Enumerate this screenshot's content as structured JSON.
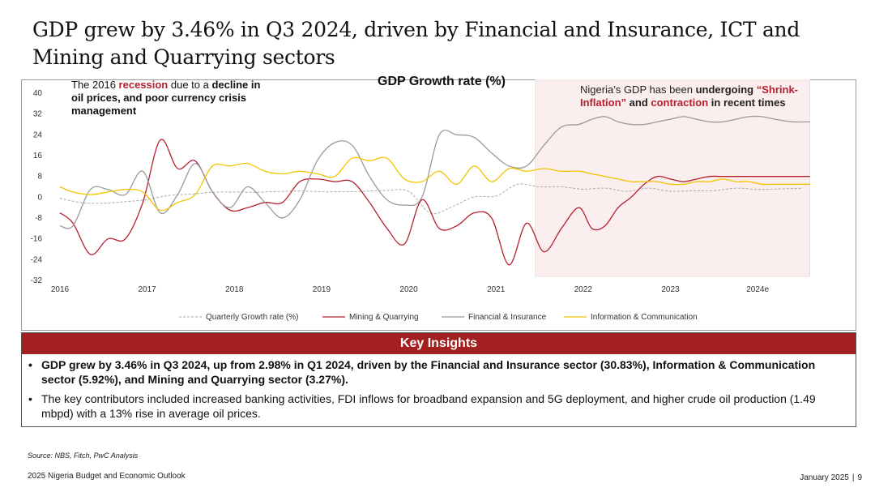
{
  "title": "GDP grew by 3.46% in Q3 2024, driven by Financial and Insurance,  ICT and Mining and Quarrying sectors",
  "notes": {
    "left": {
      "pre": "The 2016 ",
      "highlight": "recession",
      "post": " due to a",
      "bold": "decline in oil prices, and poor currency crisis management"
    },
    "right": {
      "pre": "Nigeria’s GDP has been ",
      "bold1": "undergoing ",
      "highlight1": "“Shrink-Inflation”",
      "mid": " and ",
      "highlight2": "contraction",
      "bold2": " in recent times"
    }
  },
  "colors": {
    "quarterly": "#aaaaaa",
    "mining": "#b5202e",
    "finance": "#9a9a9a",
    "ict": "#f2c400",
    "shade": "#fbeeee",
    "header": "#a32020"
  },
  "chart_data": {
    "type": "line",
    "title": "GDP Growth rate (%)",
    "xlabel": "",
    "ylabel": "",
    "ylim": [
      -32,
      40
    ],
    "yticks": [
      -32,
      -24,
      -16,
      -8,
      0,
      8,
      16,
      24,
      32,
      40
    ],
    "xlim": [
      2016,
      2024.9
    ],
    "xticks": [
      {
        "value": 2016,
        "label": "2016"
      },
      {
        "value": 2017,
        "label": "2017"
      },
      {
        "value": 2018,
        "label": "2018"
      },
      {
        "value": 2019,
        "label": "2019"
      },
      {
        "value": 2020,
        "label": "2020"
      },
      {
        "value": 2021,
        "label": "2021"
      },
      {
        "value": 2022,
        "label": "2022"
      },
      {
        "value": 2023,
        "label": "2023"
      },
      {
        "value": 2024,
        "label": "2024e"
      }
    ],
    "shaded_region": {
      "x_start": 2021.45,
      "x_end": 2024.6
    },
    "series": [
      {
        "name": "Quarterly Growth rate (%)",
        "style": "dashed",
        "x": [
          2016.0,
          2016.25,
          2016.5,
          2016.75,
          2017.0,
          2017.25,
          2017.5,
          2017.75,
          2018.0,
          2018.25,
          2018.5,
          2018.75,
          2019.0,
          2019.25,
          2019.5,
          2019.75,
          2020.0,
          2020.25,
          2020.5,
          2020.75,
          2021.0,
          2021.25,
          2021.5,
          2021.75,
          2022.0,
          2022.25,
          2022.5,
          2022.75,
          2023.0,
          2023.25,
          2023.5,
          2023.75,
          2024.0,
          2024.25,
          2024.5
        ],
        "values": [
          -0.4,
          -2.1,
          -2.3,
          -1.7,
          -0.9,
          0.7,
          1.2,
          1.9,
          2.0,
          1.9,
          2.2,
          2.4,
          2.1,
          2.1,
          2.3,
          2.6,
          2.2,
          -6.1,
          -3.6,
          0.1,
          0.5,
          5.0,
          4.0,
          4.0,
          3.1,
          3.5,
          2.3,
          3.5,
          2.3,
          2.5,
          2.5,
          3.5,
          2.98,
          3.2,
          3.46
        ]
      },
      {
        "name": "Mining & Quarrying",
        "style": "solid",
        "x": [
          2016.0,
          2016.15,
          2016.35,
          2016.55,
          2016.75,
          2016.95,
          2017.15,
          2017.35,
          2017.55,
          2017.75,
          2017.95,
          2018.15,
          2018.35,
          2018.55,
          2018.75,
          2018.95,
          2019.15,
          2019.35,
          2019.55,
          2019.75,
          2019.95,
          2020.15,
          2020.35,
          2020.55,
          2020.75,
          2020.95,
          2021.15,
          2021.35,
          2021.55,
          2021.75,
          2021.95,
          2022.1,
          2022.25,
          2022.4,
          2022.55,
          2022.7,
          2022.85,
          2023.0,
          2023.15,
          2023.3,
          2023.45,
          2023.6,
          2023.75,
          2023.9,
          2024.05,
          2024.2,
          2024.4,
          2024.6
        ],
        "values": [
          -6,
          -10,
          -22,
          -16,
          -16,
          -2,
          22,
          11,
          14,
          2,
          -5,
          -4,
          -2,
          -2,
          6,
          7,
          6,
          6,
          -2,
          -12,
          -18,
          -1,
          -12,
          -11,
          -6,
          -8,
          -26,
          -10,
          -21,
          -12,
          -4,
          -12,
          -11,
          -4,
          0,
          5,
          8,
          7,
          6,
          7,
          8,
          8,
          8,
          8,
          8,
          8,
          8,
          8
        ]
      },
      {
        "name": "Financial & Insurance",
        "style": "solid",
        "x": [
          2016.0,
          2016.15,
          2016.35,
          2016.55,
          2016.75,
          2016.95,
          2017.15,
          2017.35,
          2017.55,
          2017.75,
          2017.95,
          2018.15,
          2018.35,
          2018.55,
          2018.75,
          2018.95,
          2019.15,
          2019.35,
          2019.55,
          2019.75,
          2019.95,
          2020.15,
          2020.35,
          2020.55,
          2020.75,
          2020.95,
          2021.15,
          2021.35,
          2021.55,
          2021.75,
          2021.95,
          2022.1,
          2022.25,
          2022.4,
          2022.55,
          2022.7,
          2022.85,
          2023.0,
          2023.15,
          2023.3,
          2023.45,
          2023.6,
          2023.75,
          2023.9,
          2024.05,
          2024.2,
          2024.4,
          2024.6
        ],
        "values": [
          -11,
          -11,
          3,
          3,
          1,
          10,
          -6,
          1,
          13,
          2,
          -4,
          4,
          -2,
          -8,
          -1,
          14,
          21,
          20,
          8,
          -1,
          -3,
          0,
          24,
          24,
          23,
          17,
          12,
          12,
          20,
          27,
          28,
          30,
          31,
          29,
          28,
          28,
          29,
          30,
          31,
          30,
          29,
          29,
          30,
          31,
          31,
          30,
          29,
          29
        ]
      },
      {
        "name": "Information & Communication",
        "style": "solid",
        "x": [
          2016.0,
          2016.15,
          2016.35,
          2016.55,
          2016.75,
          2016.95,
          2017.15,
          2017.35,
          2017.55,
          2017.75,
          2017.95,
          2018.15,
          2018.35,
          2018.55,
          2018.75,
          2018.95,
          2019.15,
          2019.35,
          2019.55,
          2019.75,
          2019.95,
          2020.15,
          2020.35,
          2020.55,
          2020.75,
          2020.95,
          2021.15,
          2021.35,
          2021.55,
          2021.75,
          2021.95,
          2022.1,
          2022.25,
          2022.4,
          2022.55,
          2022.7,
          2022.85,
          2023.0,
          2023.15,
          2023.3,
          2023.45,
          2023.6,
          2023.75,
          2023.9,
          2024.05,
          2024.2,
          2024.4,
          2024.6
        ],
        "values": [
          4,
          2,
          1,
          2,
          3,
          2,
          -5,
          -2,
          1,
          12,
          12,
          13,
          10,
          9,
          10,
          9,
          8,
          15,
          14,
          15,
          7,
          6,
          10,
          5,
          12,
          6,
          11,
          10,
          11,
          10,
          10,
          9,
          8,
          7,
          6,
          6,
          6,
          5,
          5,
          6,
          6,
          7,
          6,
          6,
          5,
          5,
          5,
          5
        ]
      }
    ]
  },
  "legend": [
    {
      "label": "Quarterly Growth rate (%)"
    },
    {
      "label": "Mining & Quarrying"
    },
    {
      "label": "Financial & Insurance"
    },
    {
      "label": "Information & Communication"
    }
  ],
  "insights": {
    "header": "Key Insights",
    "items": [
      "GDP grew by 3.46% in Q3 2024, up from 2.98% in Q1 2024, driven by the Financial and Insurance sector (30.83%), Information & Communication sector (5.92%), and Mining and Quarrying sector (3.27%).",
      "The key contributors included increased banking activities, FDI inflows for broadband expansion and 5G deployment, and higher crude oil production (1.49 mbpd) with a 13% rise in average oil prices."
    ],
    "bullet": "•"
  },
  "source": "Source: NBS, Fitch,  PwC Analysis",
  "footer": {
    "left": "2025 Nigeria Budget and Economic Outlook",
    "date": "January 2025",
    "sep": "|",
    "page": "9"
  }
}
